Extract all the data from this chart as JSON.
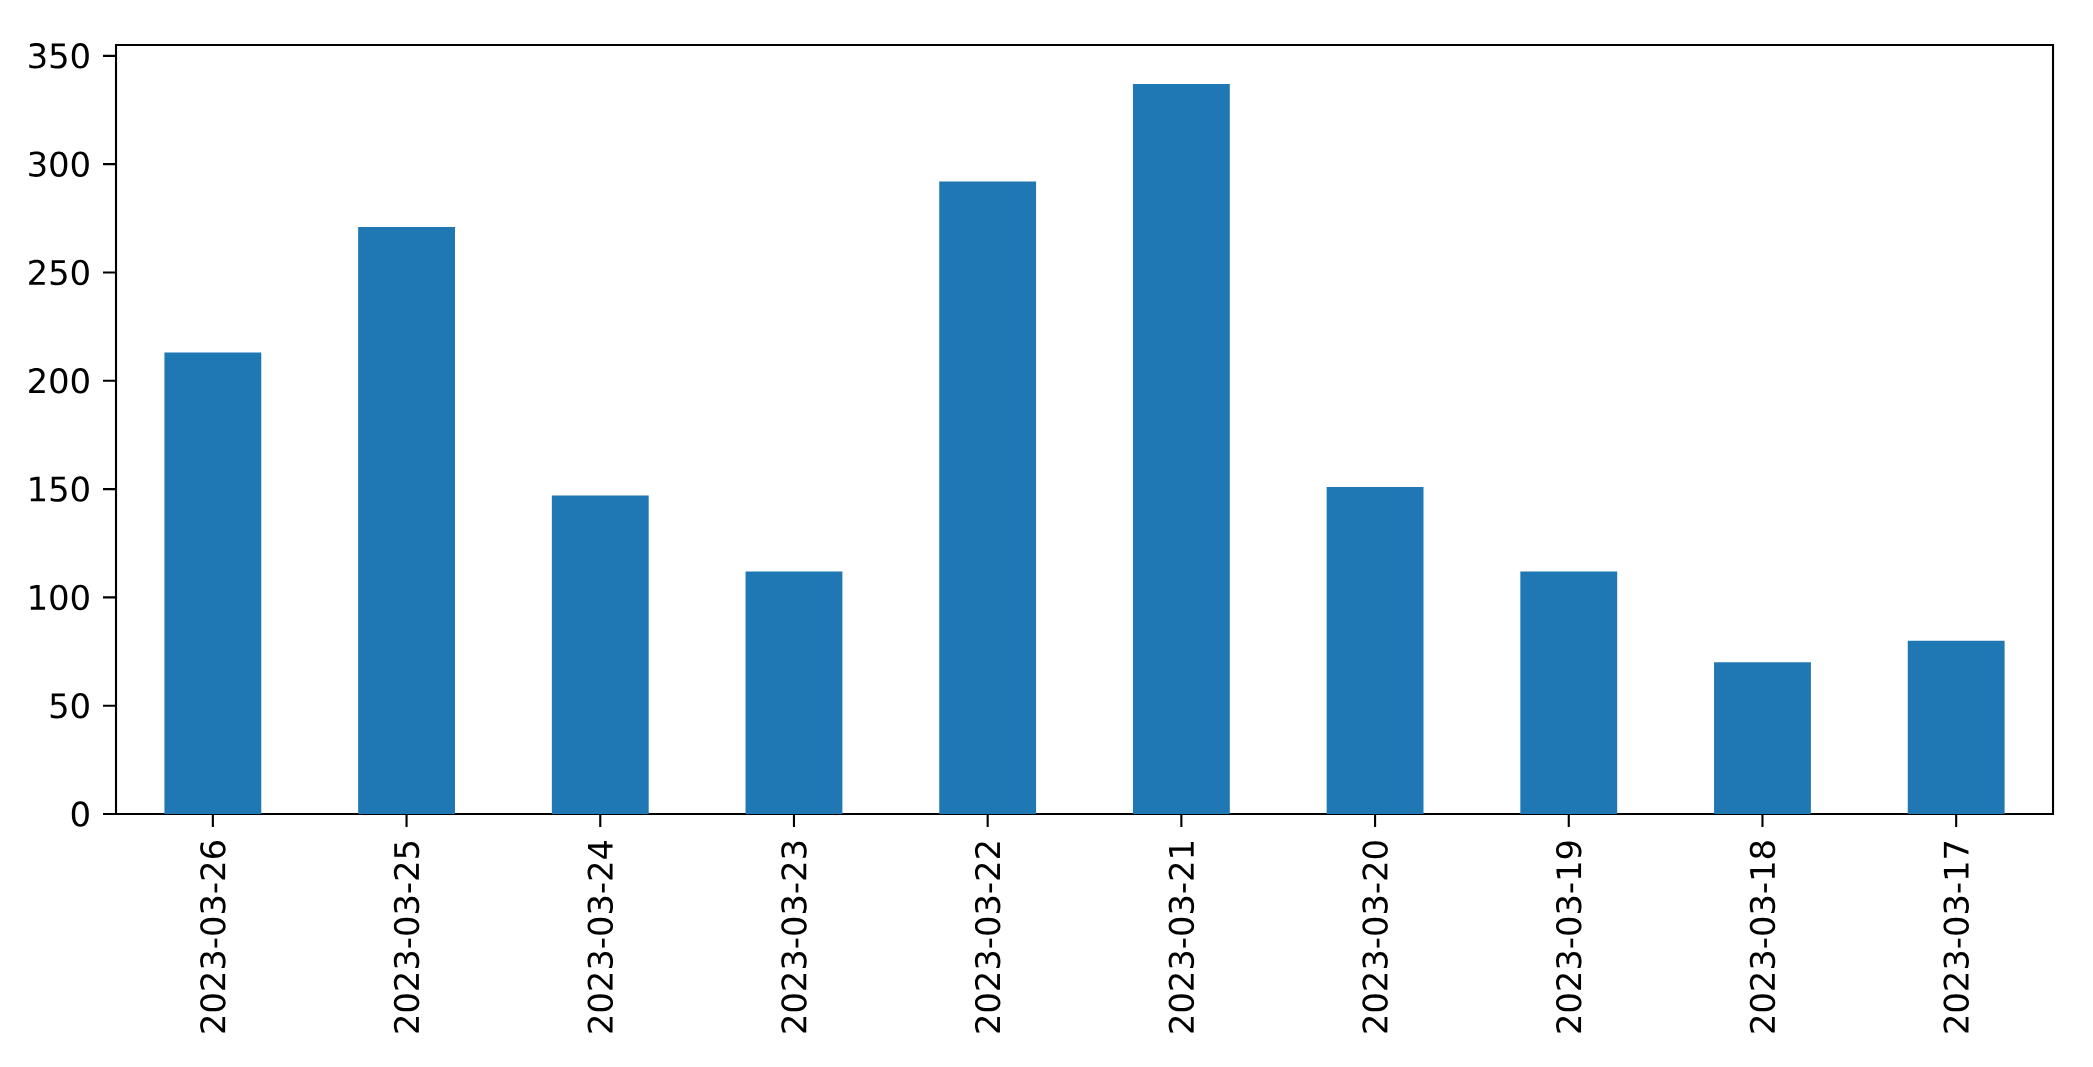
{
  "chart_data": {
    "type": "bar",
    "categories": [
      "2023-03-26",
      "2023-03-25",
      "2023-03-24",
      "2023-03-23",
      "2023-03-22",
      "2023-03-21",
      "2023-03-20",
      "2023-03-19",
      "2023-03-18",
      "2023-03-17"
    ],
    "values": [
      213,
      271,
      147,
      112,
      292,
      337,
      151,
      112,
      70,
      80
    ],
    "color": "#1f77b4",
    "ylim": [
      0,
      355
    ],
    "yticks": [
      0,
      50,
      100,
      150,
      200,
      250,
      300,
      350
    ],
    "grid": false
  }
}
